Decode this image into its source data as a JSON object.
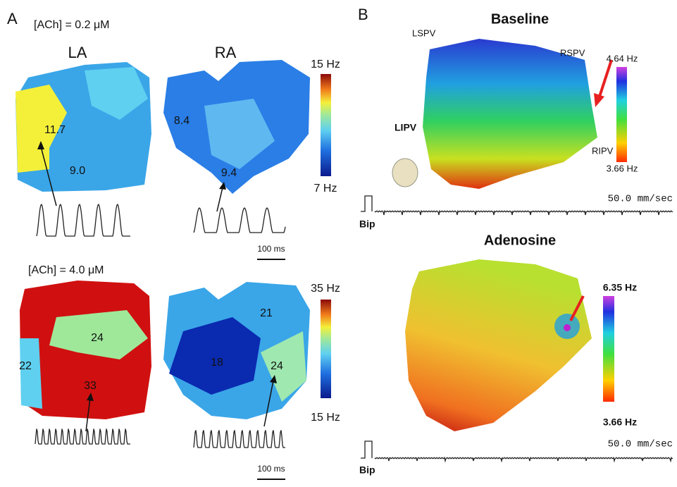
{
  "panel_a": {
    "label": "A",
    "top": {
      "concentration": "[ACh] = 0.2 μM",
      "la_label": "LA",
      "ra_label": "RA",
      "scale_max": "15 Hz",
      "scale_min": "7 Hz",
      "la_values": [
        "11.7",
        "9.0"
      ],
      "ra_values": [
        "8.4",
        "9.4"
      ],
      "time_scale": "100 ms"
    },
    "bottom": {
      "concentration": "[ACh] = 4.0 μM",
      "scale_max": "35 Hz",
      "scale_min": "15 Hz",
      "la_values": [
        "24",
        "22",
        "33"
      ],
      "ra_values": [
        "21",
        "18",
        "24"
      ],
      "time_scale": "100 ms"
    }
  },
  "panel_b": {
    "label": "B",
    "baseline": {
      "title": "Baseline",
      "veins": [
        "LSPV",
        "RSPV",
        "LIPV",
        "RIPV"
      ],
      "scale_max": "4.64 Hz",
      "scale_min": "3.66 Hz",
      "speed": "50.0 mm/sec",
      "lead": "Bip"
    },
    "adenosine": {
      "title": "Adenosine",
      "scale_max": "6.35 Hz",
      "scale_min": "3.66 Hz",
      "speed": "50.0 mm/sec",
      "lead": "Bip"
    }
  }
}
